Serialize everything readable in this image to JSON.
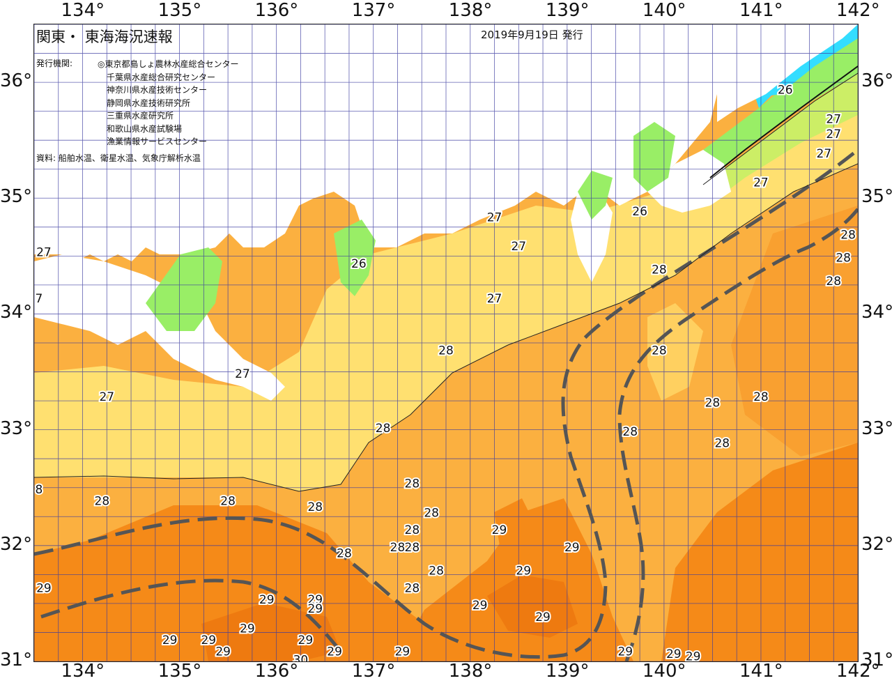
{
  "title": "関東・ 東海海況速報",
  "issue_date": "2019年9月19日 発行",
  "issuer_label": "発行機関:",
  "organizations": [
    "◎東京都島しょ農林水産総合センター",
    "千葉県水産総合研究センター",
    "神奈川県水産技術センター",
    "静岡県水産技術研究所",
    "三重県水産研究所",
    "和歌山県水産試験場",
    "漁業情報サービスセンター"
  ],
  "source_note": "資料: 船舶水温、衛星水温、気象庁解析水温",
  "longitude_labels": [
    "134°",
    "135°",
    "136°",
    "137°",
    "138°",
    "139°",
    "140°",
    "141°",
    "142°"
  ],
  "latitude_labels": [
    "36°",
    "35°",
    "34°",
    "33°",
    "32°",
    "31°"
  ],
  "temperature_labels": [
    {
      "lon": 141.25,
      "lat": 35.9,
      "t": "26"
    },
    {
      "lon": 141.75,
      "lat": 35.65,
      "t": "27"
    },
    {
      "lon": 141.75,
      "lat": 35.52,
      "t": "27"
    },
    {
      "lon": 141.65,
      "lat": 35.35,
      "t": "27"
    },
    {
      "lon": 141.0,
      "lat": 35.1,
      "t": "27"
    },
    {
      "lon": 139.75,
      "lat": 34.85,
      "t": "26"
    },
    {
      "lon": 138.25,
      "lat": 34.8,
      "t": "27"
    },
    {
      "lon": 138.5,
      "lat": 34.55,
      "t": "27"
    },
    {
      "lon": 138.25,
      "lat": 34.1,
      "t": "27"
    },
    {
      "lon": 139.95,
      "lat": 34.35,
      "t": "28"
    },
    {
      "lon": 141.75,
      "lat": 34.25,
      "t": "28"
    },
    {
      "lon": 141.85,
      "lat": 34.45,
      "t": "28"
    },
    {
      "lon": 141.9,
      "lat": 34.65,
      "t": "28"
    },
    {
      "lon": 136.85,
      "lat": 34.4,
      "t": "26"
    },
    {
      "lon": 133.6,
      "lat": 34.5,
      "t": "27"
    },
    {
      "lon": 133.55,
      "lat": 34.1,
      "t": "7"
    },
    {
      "lon": 137.75,
      "lat": 33.65,
      "t": "28"
    },
    {
      "lon": 135.65,
      "lat": 33.45,
      "t": "27"
    },
    {
      "lon": 134.25,
      "lat": 33.25,
      "t": "27"
    },
    {
      "lon": 139.95,
      "lat": 33.65,
      "t": "28"
    },
    {
      "lon": 140.5,
      "lat": 33.2,
      "t": "28"
    },
    {
      "lon": 141.0,
      "lat": 33.25,
      "t": "28"
    },
    {
      "lon": 139.65,
      "lat": 32.95,
      "t": "28"
    },
    {
      "lon": 140.6,
      "lat": 32.85,
      "t": "28"
    },
    {
      "lon": 137.1,
      "lat": 32.98,
      "t": "28"
    },
    {
      "lon": 133.55,
      "lat": 32.45,
      "t": "8"
    },
    {
      "lon": 134.2,
      "lat": 32.35,
      "t": "28"
    },
    {
      "lon": 135.5,
      "lat": 32.35,
      "t": "28"
    },
    {
      "lon": 136.4,
      "lat": 32.3,
      "t": "28"
    },
    {
      "lon": 137.4,
      "lat": 32.5,
      "t": "28"
    },
    {
      "lon": 137.6,
      "lat": 32.25,
      "t": "28"
    },
    {
      "lon": 137.4,
      "lat": 32.1,
      "t": "28"
    },
    {
      "lon": 137.25,
      "lat": 31.95,
      "t": "28"
    },
    {
      "lon": 137.4,
      "lat": 31.95,
      "t": "28"
    },
    {
      "lon": 137.65,
      "lat": 31.75,
      "t": "28"
    },
    {
      "lon": 137.4,
      "lat": 31.6,
      "t": "28"
    },
    {
      "lon": 136.7,
      "lat": 31.9,
      "t": "28"
    },
    {
      "lon": 138.3,
      "lat": 32.1,
      "t": "29"
    },
    {
      "lon": 139.05,
      "lat": 31.95,
      "t": "29"
    },
    {
      "lon": 138.55,
      "lat": 31.75,
      "t": "29"
    },
    {
      "lon": 133.6,
      "lat": 31.6,
      "t": "29"
    },
    {
      "lon": 135.9,
      "lat": 31.5,
      "t": "29"
    },
    {
      "lon": 136.4,
      "lat": 31.5,
      "t": "29"
    },
    {
      "lon": 136.4,
      "lat": 31.42,
      "t": "29"
    },
    {
      "lon": 138.1,
      "lat": 31.45,
      "t": "29"
    },
    {
      "lon": 138.75,
      "lat": 31.35,
      "t": "29"
    },
    {
      "lon": 135.7,
      "lat": 31.25,
      "t": "29"
    },
    {
      "lon": 134.9,
      "lat": 31.15,
      "t": "29"
    },
    {
      "lon": 135.3,
      "lat": 31.15,
      "t": "29"
    },
    {
      "lon": 136.3,
      "lat": 31.15,
      "t": "29"
    },
    {
      "lon": 135.45,
      "lat": 31.05,
      "t": "29"
    },
    {
      "lon": 136.25,
      "lat": 30.98,
      "t": "30"
    },
    {
      "lon": 136.6,
      "lat": 31.05,
      "t": "29"
    },
    {
      "lon": 137.3,
      "lat": 31.05,
      "t": "29"
    },
    {
      "lon": 139.6,
      "lat": 31.05,
      "t": "29"
    },
    {
      "lon": 140.1,
      "lat": 31.03,
      "t": "29"
    },
    {
      "lon": 140.3,
      "lat": 31.01,
      "t": "29"
    }
  ],
  "colors": {
    "land": "#ffffff",
    "sst_24": "#33ddff",
    "sst_25": "#88e8c8",
    "sst_26": "#99ee66",
    "sst_26_5": "#ccee66",
    "sst_27": "#ffe070",
    "sst_27_5": "#ffd060",
    "sst_28": "#fbb040",
    "sst_28_5": "#f9a030",
    "sst_29": "#f58a18",
    "sst_30": "#ee7a10",
    "current_axis": "#555555",
    "grid": "#3a3aa0"
  }
}
